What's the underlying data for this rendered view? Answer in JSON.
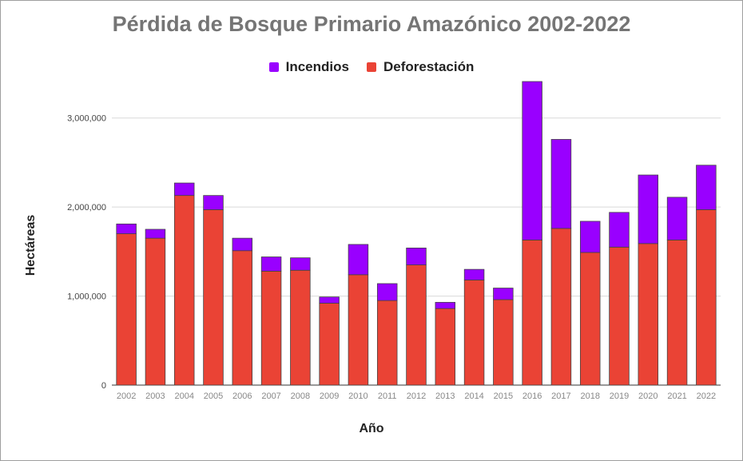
{
  "chart_data": {
    "type": "bar",
    "stacked": true,
    "title": "Pérdida de Bosque Primario Amazónico 2002-2022",
    "xlabel": "Año",
    "ylabel": "Hectáreas",
    "categories": [
      "2002",
      "2003",
      "2004",
      "2005",
      "2006",
      "2007",
      "2008",
      "2009",
      "2010",
      "2011",
      "2012",
      "2013",
      "2014",
      "2015",
      "2016",
      "2017",
      "2018",
      "2019",
      "2020",
      "2021",
      "2022"
    ],
    "series": [
      {
        "name": "Deforestación",
        "color": "#ea4335",
        "values": [
          1700000,
          1650000,
          2130000,
          1970000,
          1510000,
          1280000,
          1290000,
          920000,
          1240000,
          950000,
          1350000,
          860000,
          1180000,
          960000,
          1630000,
          1760000,
          1490000,
          1550000,
          1590000,
          1630000,
          1970000
        ]
      },
      {
        "name": "Incendios",
        "color": "#9900ff",
        "values": [
          110000,
          100000,
          140000,
          160000,
          140000,
          160000,
          140000,
          70000,
          340000,
          190000,
          190000,
          70000,
          120000,
          130000,
          1780000,
          1000000,
          350000,
          390000,
          770000,
          480000,
          500000
        ]
      }
    ],
    "ylim": [
      0,
      3500000
    ],
    "yticks": [
      0,
      1000000,
      2000000,
      3000000
    ],
    "ytick_labels": [
      "0",
      "1,000,000",
      "2,000,000",
      "3,000,000"
    ],
    "grid": true,
    "legend_position": "top"
  }
}
